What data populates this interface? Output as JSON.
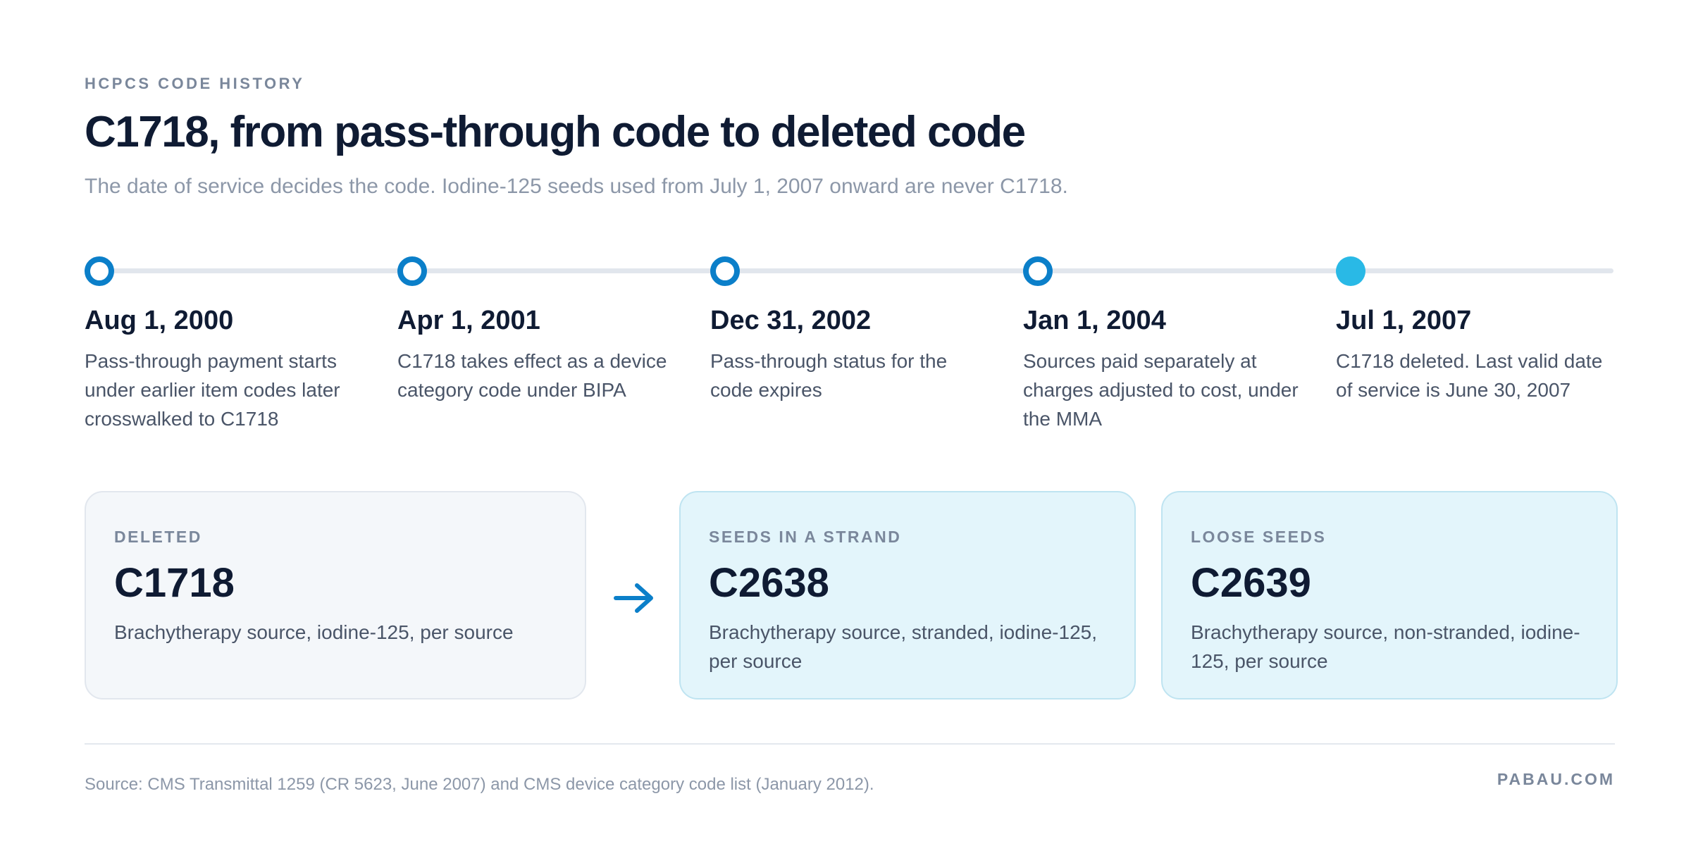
{
  "header": {
    "eyebrow": "HCPCS CODE HISTORY",
    "title": "C1718, from pass-through code to deleted code",
    "subtitle": "The date of service decides the code. Iodine-125 seeds used from July 1, 2007 onward are never C1718."
  },
  "timeline": {
    "milestones": [
      {
        "date": "Aug 1, 2000",
        "description": "Pass-through payment starts under earlier item codes later crosswalked to C1718"
      },
      {
        "date": "Apr 1, 2001",
        "description": "C1718 takes effect as a device category code under BIPA"
      },
      {
        "date": "Dec 31, 2002",
        "description": "Pass-through status for the code expires"
      },
      {
        "date": "Jan 1, 2004",
        "description": "Sources paid separately at charges adjusted to cost, under the MMA"
      },
      {
        "date": "Jul 1, 2007",
        "description": "C1718 deleted. Last valid date of service is June 30, 2007"
      }
    ]
  },
  "cards": {
    "deleted": {
      "kicker": "DELETED",
      "code": "C1718",
      "description": "Brachytherapy source, iodine-125, per source"
    },
    "strand": {
      "kicker": "SEEDS IN A STRAND",
      "code": "C2638",
      "description": "Brachytherapy source, stranded, iodine-125, per source"
    },
    "loose": {
      "kicker": "LOOSE SEEDS",
      "code": "C2639",
      "description": "Brachytherapy source, non-stranded, iodine-125, per source"
    }
  },
  "footer": {
    "source": "Source: CMS Transmittal 1259 (CR 5623, June 2007) and CMS device category code list (January 2012).",
    "brand": "PABAU.COM"
  },
  "colors": {
    "accent": "#0b7fc9",
    "accent_light": "#29b9e6",
    "title": "#0f1b33",
    "muted": "#7a879b"
  }
}
